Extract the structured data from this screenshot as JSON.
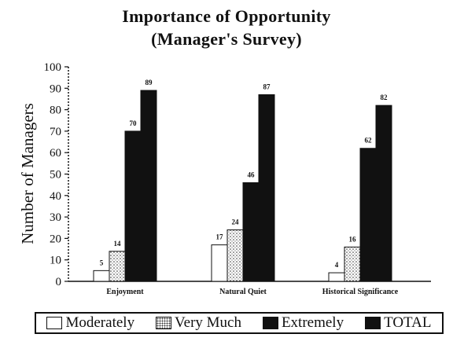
{
  "chart_data": {
    "type": "bar",
    "title": "Importance of Opportunity",
    "subtitle": "(Manager's Survey)",
    "ylabel": "Number of Managers",
    "xlabel": "",
    "ylim": [
      0,
      100
    ],
    "yticks": [
      "0",
      "10",
      "20",
      "30",
      "40",
      "50",
      "60",
      "70",
      "80",
      "90",
      "100"
    ],
    "categories": [
      "Enjoyment",
      "Natural Quiet",
      "Historical Significance"
    ],
    "series": [
      {
        "name": "Moderately",
        "values": [
          5,
          17,
          4
        ],
        "labels": [
          "5",
          "17",
          "4"
        ],
        "fill": "white"
      },
      {
        "name": "Very Much",
        "values": [
          14,
          24,
          16
        ],
        "labels": [
          "14",
          "24",
          "16"
        ],
        "fill": "dotted"
      },
      {
        "name": "Extremely",
        "values": [
          70,
          46,
          62
        ],
        "labels": [
          "70",
          "46",
          "62"
        ],
        "fill": "black"
      },
      {
        "name": "TOTAL",
        "values": [
          89,
          87,
          82
        ],
        "labels": [
          "89",
          "87",
          "82"
        ],
        "fill": "black"
      }
    ],
    "legend_position": "bottom",
    "grid": false,
    "colors": {
      "bar_dark": "#111111",
      "bar_light": "#ffffff",
      "axis": "#111111"
    }
  }
}
